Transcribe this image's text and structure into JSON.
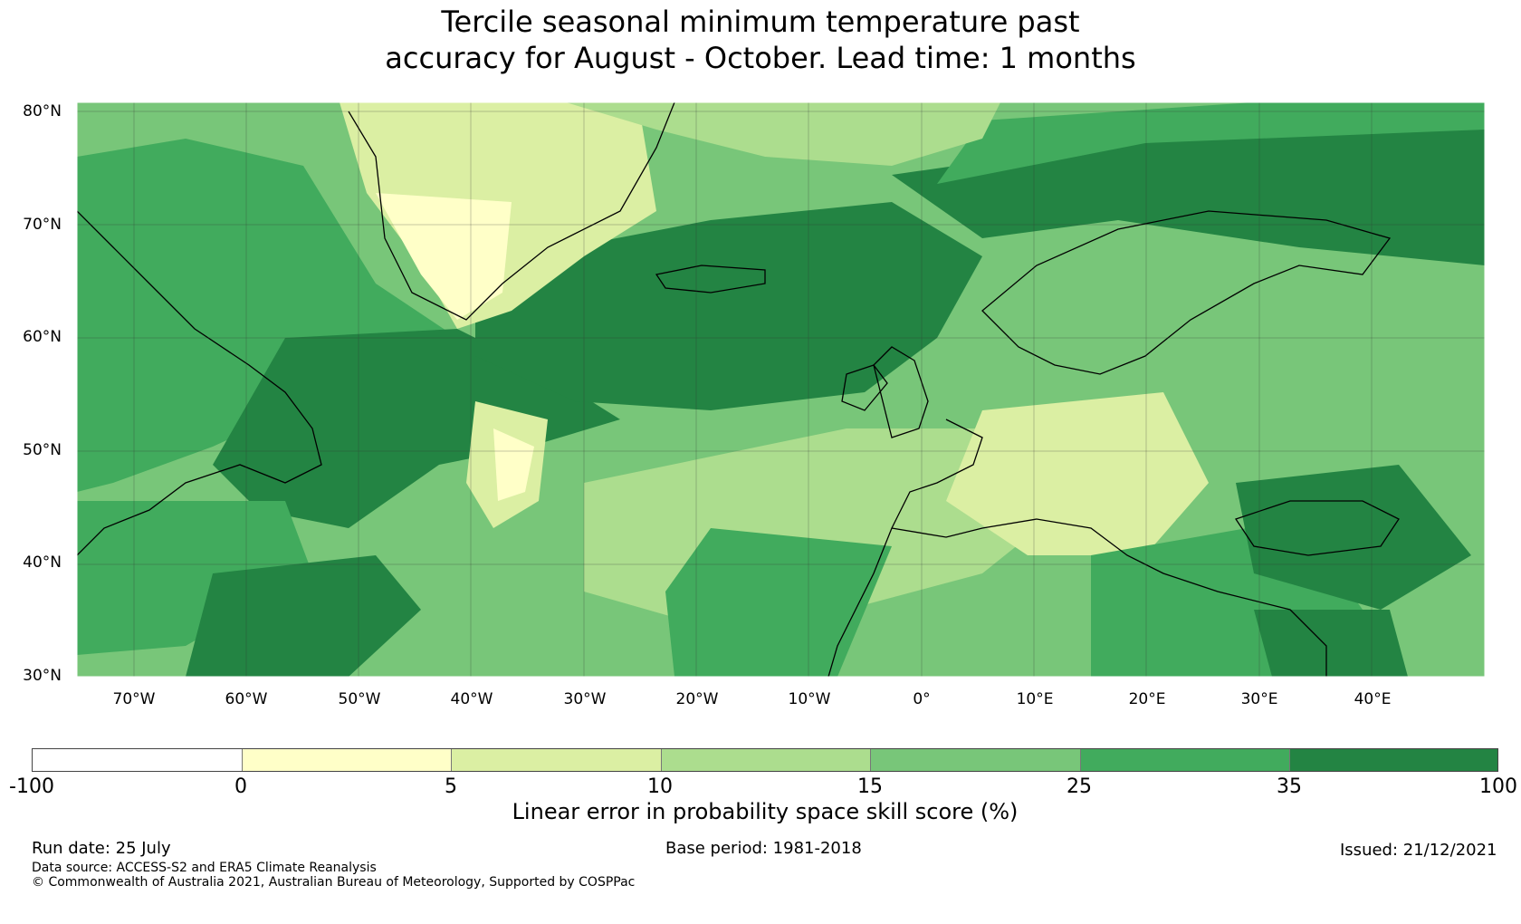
{
  "title_line1": "Tercile seasonal minimum temperature past",
  "title_line2": "accuracy for August - October. Lead time: 1 months",
  "lat_labels": [
    "80°N",
    "70°N",
    "60°N",
    "50°N",
    "40°N",
    "30°N"
  ],
  "lon_labels": [
    "70°W",
    "60°W",
    "50°W",
    "40°W",
    "30°W",
    "20°W",
    "10°W",
    "0°",
    "10°E",
    "20°E",
    "30°E",
    "40°E"
  ],
  "colorbar": {
    "bins": [
      {
        "from": "-100",
        "to": "0",
        "color": "#ffffff"
      },
      {
        "from": "0",
        "to": "5",
        "color": "#ffffc8"
      },
      {
        "from": "5",
        "to": "10",
        "color": "#dbefa3"
      },
      {
        "from": "10",
        "to": "15",
        "color": "#acdd8e"
      },
      {
        "from": "15",
        "to": "25",
        "color": "#78c679"
      },
      {
        "from": "25",
        "to": "35",
        "color": "#41ab5d"
      },
      {
        "from": "35",
        "to": "100",
        "color": "#238443"
      }
    ],
    "ticks": [
      "-100",
      "0",
      "5",
      "10",
      "15",
      "25",
      "35",
      "100"
    ],
    "label": "Linear error in probability space skill score (%)"
  },
  "footer": {
    "run_date": "Run date: 25 July",
    "base_period": "Base period: 1981-2018",
    "issued": "Issued: 21/12/2021",
    "data_source": "Data source: ACCESS-S2 and ERA5 Climate Reanalysis",
    "copyright": "© Commonwealth of Australia 2021, Australian Bureau of Meteorology, Supported by COSPPac"
  }
}
